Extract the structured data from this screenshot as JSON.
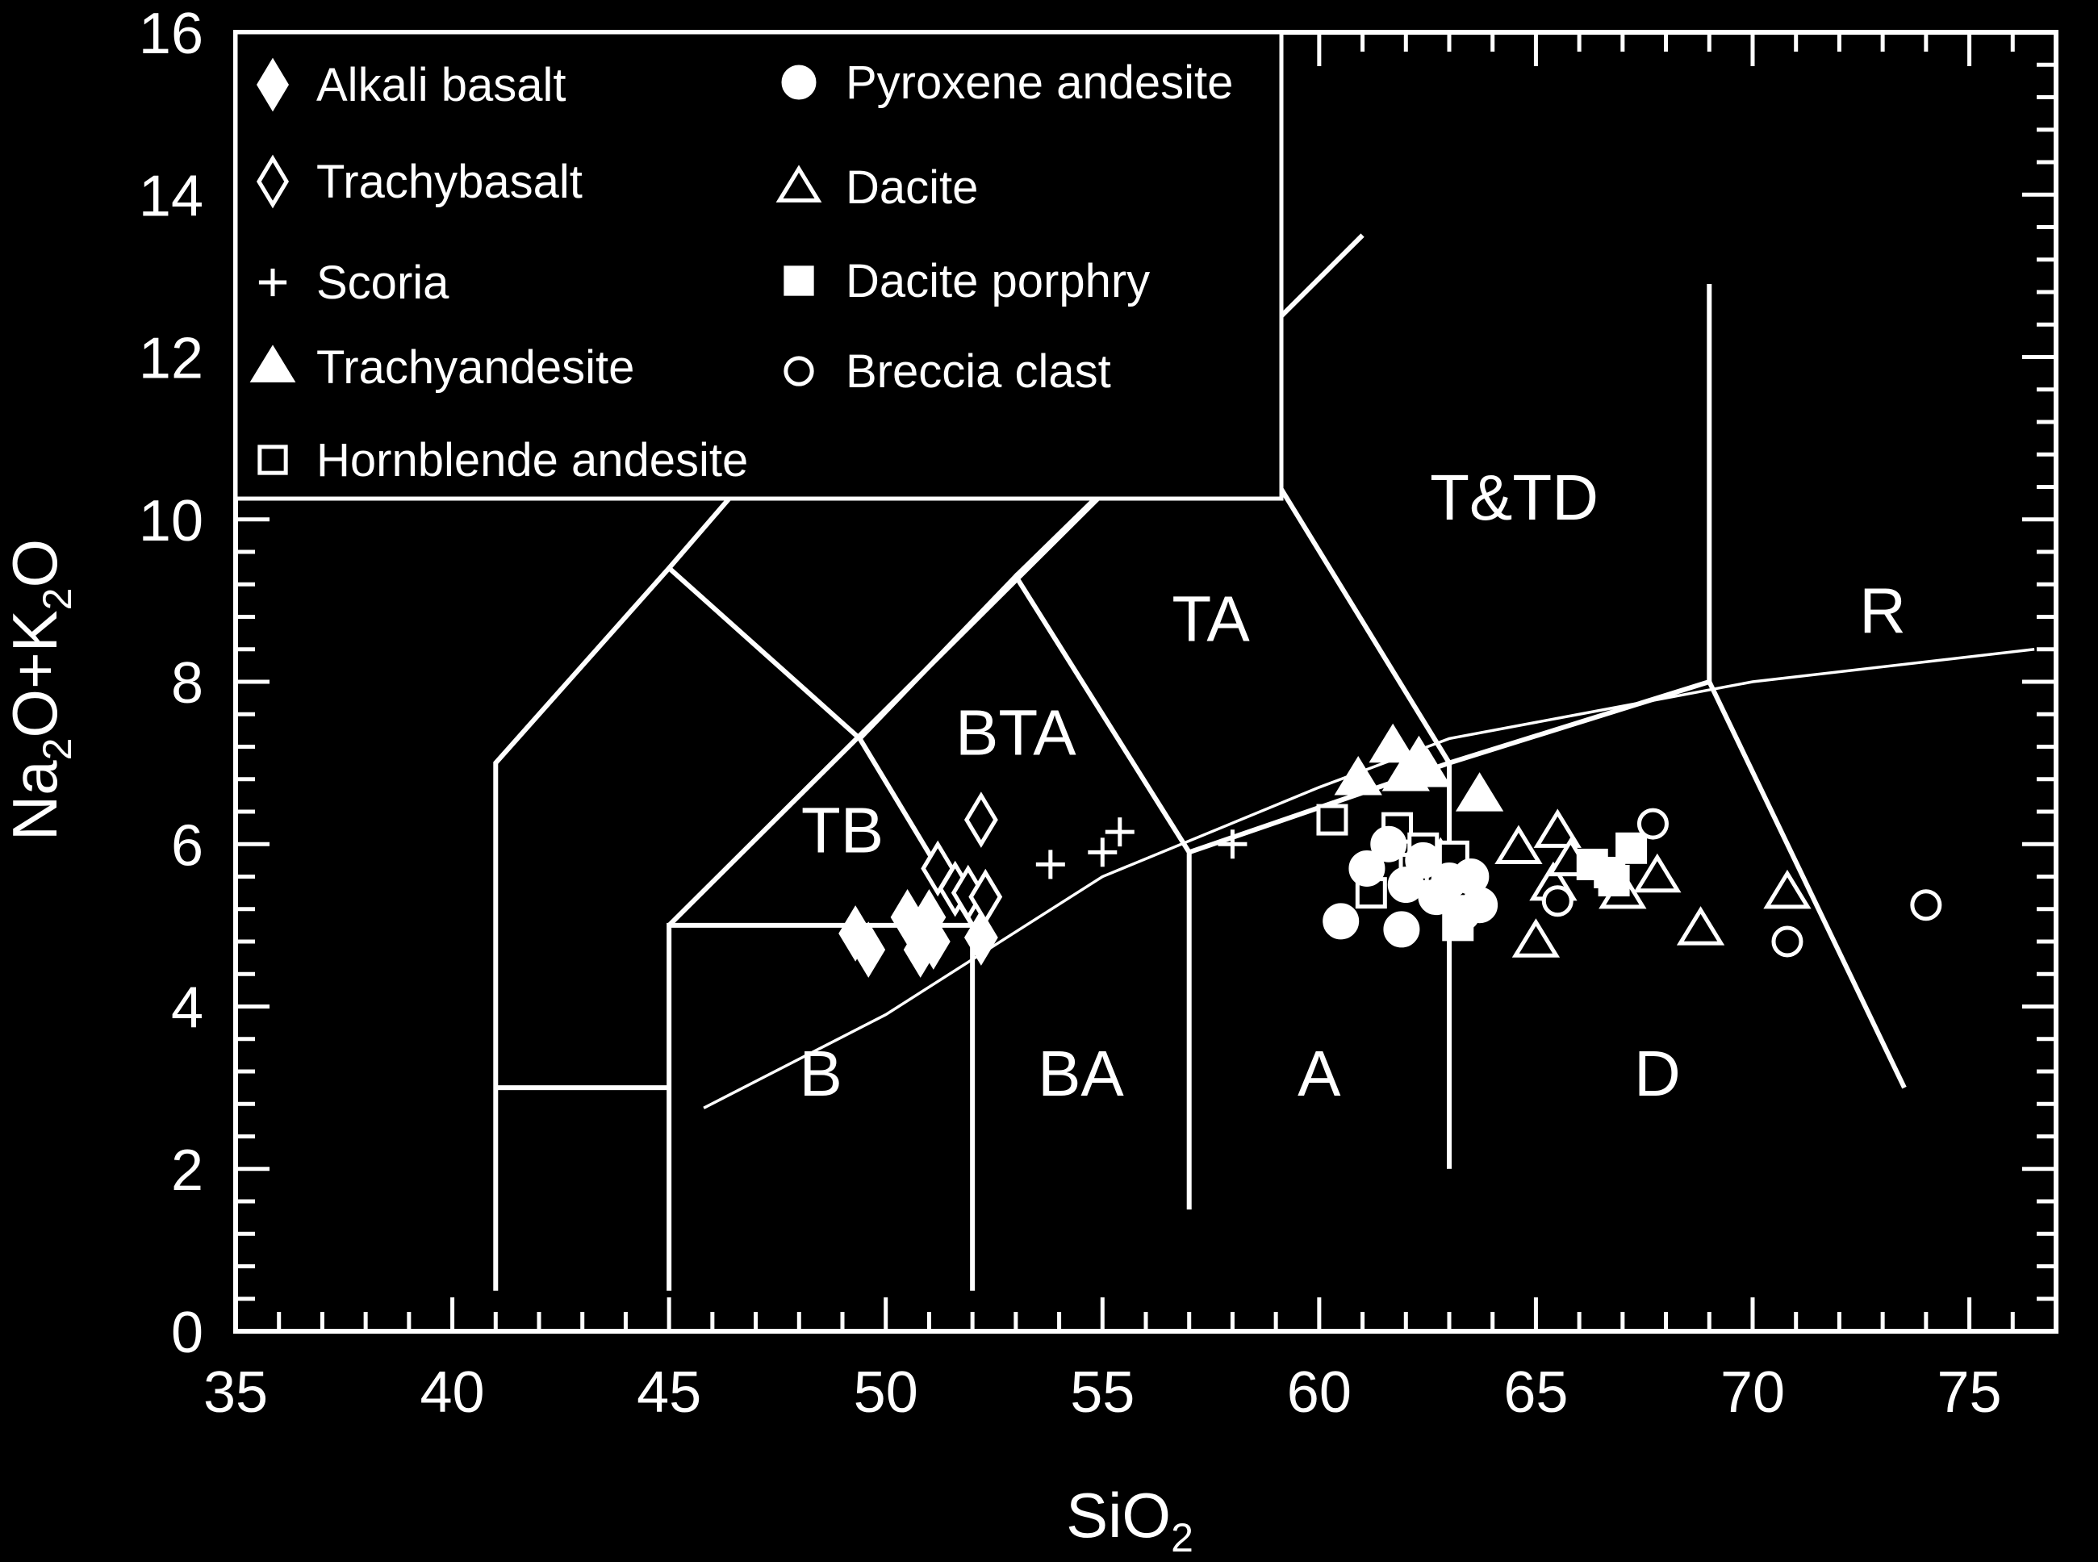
{
  "chart_data": {
    "type": "scatter",
    "title": "",
    "xlabel": {
      "text": "SiO",
      "subscript": "2"
    },
    "ylabel": {
      "parts": [
        "Na",
        "2",
        "O+K",
        "2",
        "O"
      ]
    },
    "xlim": [
      35,
      77
    ],
    "ylim": [
      0,
      16
    ],
    "xticks": [
      35,
      40,
      45,
      50,
      55,
      60,
      65,
      70,
      75
    ],
    "yticks": [
      0,
      2,
      4,
      6,
      8,
      10,
      12,
      14,
      16
    ],
    "grid": false,
    "legend_position": "top-left",
    "colors": {
      "background": "#000000",
      "foreground": "#ffffff"
    },
    "fields": [
      {
        "label": "TB",
        "x": 49.0,
        "y": 5.9
      },
      {
        "label": "BTA",
        "x": 53.0,
        "y": 7.1
      },
      {
        "label": "TA",
        "x": 57.5,
        "y": 8.5
      },
      {
        "label": "T&TD",
        "x": 64.5,
        "y": 10.0
      },
      {
        "label": "R",
        "x": 73.0,
        "y": 8.6
      },
      {
        "label": "B",
        "x": 48.5,
        "y": 2.9
      },
      {
        "label": "BA",
        "x": 54.5,
        "y": 2.9
      },
      {
        "label": "A",
        "x": 60.0,
        "y": 2.9
      },
      {
        "label": "D",
        "x": 67.8,
        "y": 2.9
      }
    ],
    "boundaries": [
      [
        [
          41,
          0.5
        ],
        [
          41,
          7.0
        ],
        [
          45,
          9.4
        ],
        [
          48.4,
          11.5
        ],
        [
          52.5,
          14.0
        ]
      ],
      [
        [
          41,
          3.0
        ],
        [
          45,
          3.0
        ]
      ],
      [
        [
          45,
          0.5
        ],
        [
          45,
          5.0
        ],
        [
          52,
          5.0
        ],
        [
          52,
          0.5
        ]
      ],
      [
        [
          45,
          5.0
        ],
        [
          61,
          13.5
        ]
      ],
      [
        [
          45,
          9.4
        ],
        [
          49.4,
          7.3
        ],
        [
          52,
          5.0
        ]
      ],
      [
        [
          49.4,
          7.3
        ],
        [
          53,
          9.3
        ],
        [
          57,
          5.9
        ],
        [
          57,
          1.5
        ]
      ],
      [
        [
          53,
          9.3
        ],
        [
          57.6,
          11.7
        ]
      ],
      [
        [
          57,
          5.9
        ],
        [
          63,
          7.0
        ]
      ],
      [
        [
          52.5,
          14.0
        ],
        [
          57.6,
          11.7
        ],
        [
          63,
          7.0
        ],
        [
          63,
          2.0
        ]
      ],
      [
        [
          63,
          7.0
        ],
        [
          69,
          8.0
        ],
        [
          69,
          12.9
        ]
      ],
      [
        [
          69,
          8.0
        ],
        [
          73.5,
          3.0
        ]
      ]
    ],
    "alkaline_subalkaline_divide": [
      [
        45.8,
        2.75
      ],
      [
        50,
        3.9
      ],
      [
        55,
        5.6
      ],
      [
        60,
        6.7
      ],
      [
        63,
        7.3
      ],
      [
        66,
        7.6
      ],
      [
        70,
        8.0
      ],
      [
        76.5,
        8.4
      ]
    ],
    "series": [
      {
        "name": "Alkali basalt",
        "marker": "diamond-filled",
        "points": [
          [
            49.3,
            4.9
          ],
          [
            49.6,
            4.7
          ],
          [
            50.5,
            5.1
          ],
          [
            50.8,
            4.7
          ],
          [
            51.1,
            4.8
          ],
          [
            51.0,
            5.1
          ],
          [
            52.2,
            4.85
          ]
        ]
      },
      {
        "name": "Trachybasalt",
        "marker": "diamond-open",
        "points": [
          [
            51.2,
            5.7
          ],
          [
            51.6,
            5.45
          ],
          [
            51.9,
            5.4
          ],
          [
            52.3,
            5.35
          ],
          [
            52.2,
            6.3
          ]
        ]
      },
      {
        "name": "Scoria",
        "marker": "plus",
        "points": [
          [
            53.8,
            5.75
          ],
          [
            55.0,
            5.9
          ],
          [
            55.4,
            6.15
          ],
          [
            58.0,
            6.0
          ]
        ]
      },
      {
        "name": "Trachyandesite",
        "marker": "triangle-filled",
        "points": [
          [
            60.9,
            6.8
          ],
          [
            61.7,
            7.2
          ],
          [
            62.0,
            6.85
          ],
          [
            62.3,
            7.05
          ],
          [
            62.5,
            6.9
          ],
          [
            63.7,
            6.6
          ],
          [
            62.8,
            5.8
          ]
        ]
      },
      {
        "name": "Hornblende andesite",
        "marker": "square-open",
        "points": [
          [
            60.3,
            6.3
          ],
          [
            61.2,
            5.4
          ],
          [
            61.8,
            6.2
          ],
          [
            62.2,
            5.7
          ],
          [
            62.4,
            5.95
          ],
          [
            62.8,
            5.55
          ],
          [
            63.1,
            5.85
          ]
        ]
      },
      {
        "name": "Pyroxene andesite",
        "marker": "circle-filled",
        "points": [
          [
            60.5,
            5.05
          ],
          [
            61.1,
            5.7
          ],
          [
            61.6,
            6.0
          ],
          [
            61.9,
            4.95
          ],
          [
            62.0,
            5.5
          ],
          [
            62.4,
            5.8
          ],
          [
            62.7,
            5.35
          ],
          [
            63.0,
            5.55
          ],
          [
            63.3,
            5.15
          ],
          [
            63.5,
            5.6
          ],
          [
            63.7,
            5.25
          ]
        ]
      },
      {
        "name": "Dacite",
        "marker": "triangle-open",
        "points": [
          [
            64.6,
            5.95
          ],
          [
            65.0,
            4.8
          ],
          [
            65.4,
            5.5
          ],
          [
            65.5,
            6.15
          ],
          [
            65.8,
            5.8
          ],
          [
            67.0,
            5.4
          ],
          [
            67.8,
            5.6
          ],
          [
            68.8,
            4.95
          ],
          [
            70.8,
            5.4
          ]
        ]
      },
      {
        "name": "Dacite porphry",
        "marker": "square-filled",
        "points": [
          [
            63.2,
            5.0
          ],
          [
            66.3,
            5.75
          ],
          [
            66.8,
            5.55
          ],
          [
            67.2,
            5.95
          ],
          [
            66.7,
            5.65
          ]
        ]
      },
      {
        "name": "Breccia clast",
        "marker": "circle-open",
        "points": [
          [
            65.5,
            5.3
          ],
          [
            67.7,
            6.25
          ],
          [
            70.8,
            4.8
          ],
          [
            74.0,
            5.25
          ]
        ]
      }
    ],
    "legend": {
      "columns": [
        [
          "Alkali basalt",
          "Trachybasalt",
          "Scoria",
          "Trachyandesite",
          "Hornblende andesite"
        ],
        [
          "Pyroxene andesite",
          "Dacite",
          "Dacite porphry",
          "Breccia clast"
        ]
      ]
    }
  }
}
